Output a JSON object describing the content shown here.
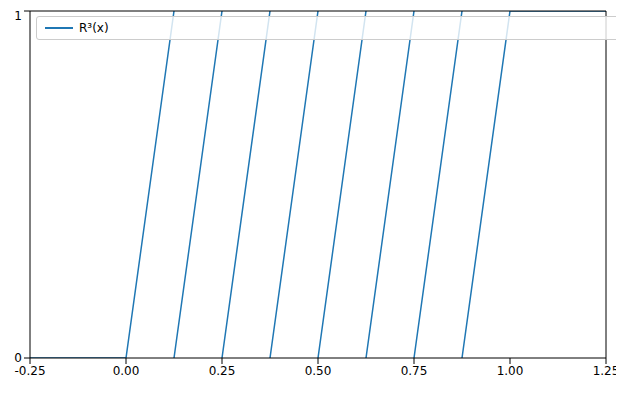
{
  "chart_data": {
    "type": "line",
    "x": [
      -0.25,
      0,
      0.125,
      0.125,
      0.125,
      0.25,
      0.25,
      0.25,
      0.375,
      0.375,
      0.375,
      0.5,
      0.5,
      0.5,
      0.625,
      0.625,
      0.625,
      0.75,
      0.75,
      0.75,
      0.875,
      0.875,
      0.875,
      1,
      1.25
    ],
    "series": [
      {
        "name": "R³(x)",
        "color": "#1f77b4",
        "line_style": "solid",
        "values": [
          0,
          0,
          1,
          null,
          0,
          1,
          null,
          0,
          1,
          null,
          0,
          1,
          null,
          0,
          1,
          null,
          0,
          1,
          null,
          0,
          1,
          null,
          0,
          1,
          1
        ]
      }
    ],
    "xlim": [
      -0.25,
      1.25
    ],
    "xticks": [
      -0.25,
      {
        "value": 0,
        "label": "0.00"
      },
      0.25,
      {
        "value": 0.5,
        "label": "0.50"
      },
      0.75,
      {
        "value": 1,
        "label": "1.00"
      },
      1.25
    ],
    "ylim": [
      0,
      1
    ],
    "yticks": [
      0,
      1
    ],
    "grid": false,
    "legend": "upper left"
  }
}
